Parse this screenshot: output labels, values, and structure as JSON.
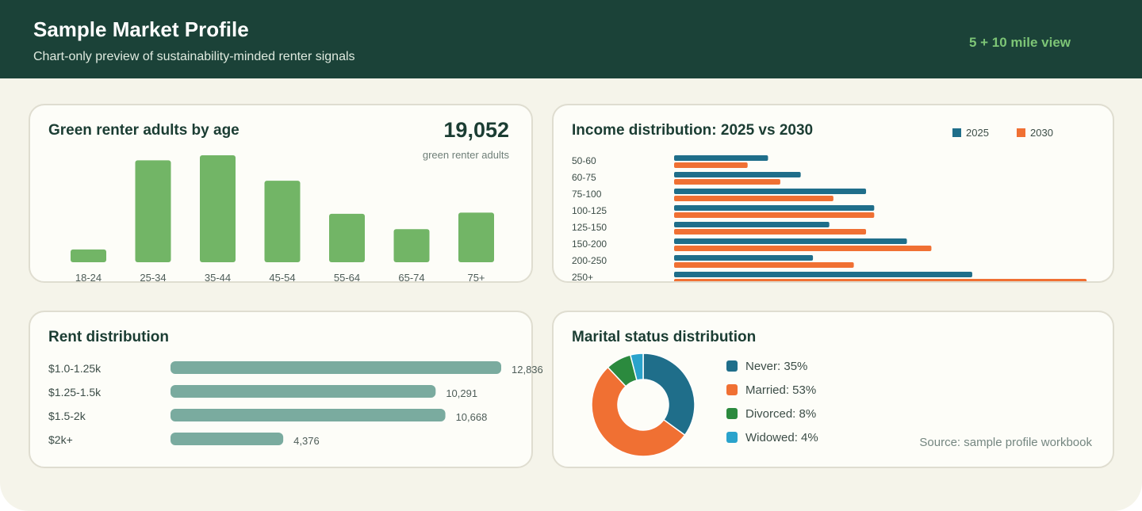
{
  "header": {
    "title": "Sample Market Profile",
    "subtitle": "Chart-only preview of sustainability-minded renter signals",
    "view_label": "5 + 10 mile view"
  },
  "colors": {
    "header_bg": "#1b4238",
    "green_bar": "#72b566",
    "teal_2025": "#1f6e8a",
    "orange_2030": "#f07033",
    "rent_bar": "#7aab9f",
    "never": "#1f6e8a",
    "married": "#f07033",
    "divorced": "#2b8a3e",
    "widowed": "#2aa3cc"
  },
  "age_card": {
    "title": "Green renter adults by age",
    "stat_value": "19,052",
    "stat_label": "green renter adults"
  },
  "income_card": {
    "title": "Income distribution: 2025 vs 2030"
  },
  "rent_card": {
    "title": "Rent distribution"
  },
  "marital_card": {
    "title": "Marital status distribution",
    "source": "Source: sample profile workbook"
  },
  "chart_data": [
    {
      "type": "bar",
      "title": "Green renter adults by age",
      "categories": [
        "18-24",
        "25-34",
        "35-44",
        "45-54",
        "55-64",
        "65-74",
        "75+"
      ],
      "values": [
        5,
        40,
        42,
        32,
        19,
        13,
        19.5
      ],
      "grid": false
    },
    {
      "type": "bar",
      "orientation": "horizontal",
      "title": "Income distribution: 2025 vs 2030",
      "categories": [
        "50-60",
        "60-75",
        "75-100",
        "100-125",
        "125-150",
        "150-200",
        "200-250",
        "250+"
      ],
      "series": [
        {
          "name": "2025",
          "values": [
            23,
            31,
            47,
            49,
            38,
            57,
            34,
            73
          ]
        },
        {
          "name": "2030",
          "values": [
            18,
            26,
            39,
            49,
            47,
            63,
            44,
            101
          ]
        }
      ],
      "legend": "top-right",
      "grid": false
    },
    {
      "type": "bar",
      "orientation": "horizontal",
      "title": "Rent distribution",
      "categories": [
        "$1.0-1.25k",
        "$1.25-1.5k",
        "$1.5-2k",
        "$2k+"
      ],
      "values": [
        12836,
        10291,
        10668,
        4376
      ],
      "value_labels": [
        "12,836",
        "10,291",
        "10,668",
        "4,376"
      ],
      "grid": false
    },
    {
      "type": "pie",
      "donut": true,
      "title": "Marital status distribution",
      "labels": [
        "Never",
        "Married",
        "Divorced",
        "Widowed"
      ],
      "values": [
        35,
        53,
        8,
        4
      ],
      "legend_labels": [
        "Never: 35%",
        "Married: 53%",
        "Divorced: 8%",
        "Widowed: 4%"
      ],
      "legend": "right"
    }
  ]
}
